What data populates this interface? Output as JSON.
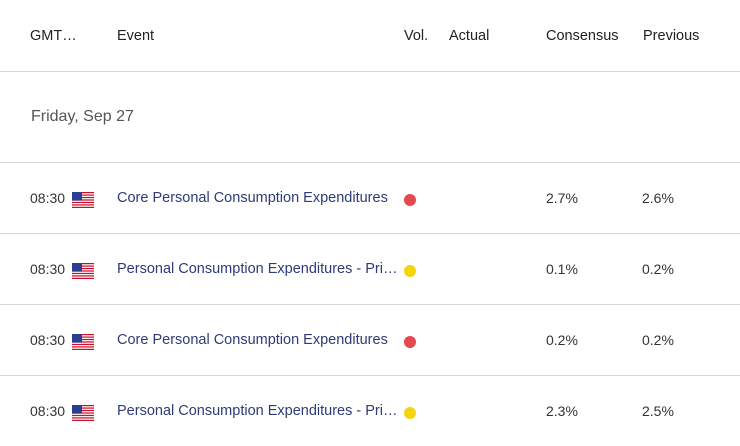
{
  "header": {
    "gmt": "GMT…",
    "event": "Event",
    "vol": "Vol.",
    "actual": "Actual",
    "consensus": "Consensus",
    "previous": "Previous"
  },
  "date_label": "Friday, Sep 27",
  "colors": {
    "high": "#e5484d",
    "medium": "#f5d40f",
    "event_text": "#2d3b78"
  },
  "rows": [
    {
      "time": "08:30",
      "country": "us-flag-icon",
      "event": "Core Personal Consumption Expenditures",
      "volatility": "high",
      "actual": "",
      "consensus": "2.7%",
      "previous": "2.6%"
    },
    {
      "time": "08:30",
      "country": "us-flag-icon",
      "event": "Personal Consumption Expenditures - Price Index",
      "volatility": "medium",
      "actual": "",
      "consensus": "0.1%",
      "previous": "0.2%"
    },
    {
      "time": "08:30",
      "country": "us-flag-icon",
      "event": "Core Personal Consumption Expenditures",
      "volatility": "high",
      "actual": "",
      "consensus": "0.2%",
      "previous": "0.2%"
    },
    {
      "time": "08:30",
      "country": "us-flag-icon",
      "event": "Personal Consumption Expenditures - Price Index",
      "volatility": "medium",
      "actual": "",
      "consensus": "2.3%",
      "previous": "2.5%"
    }
  ]
}
